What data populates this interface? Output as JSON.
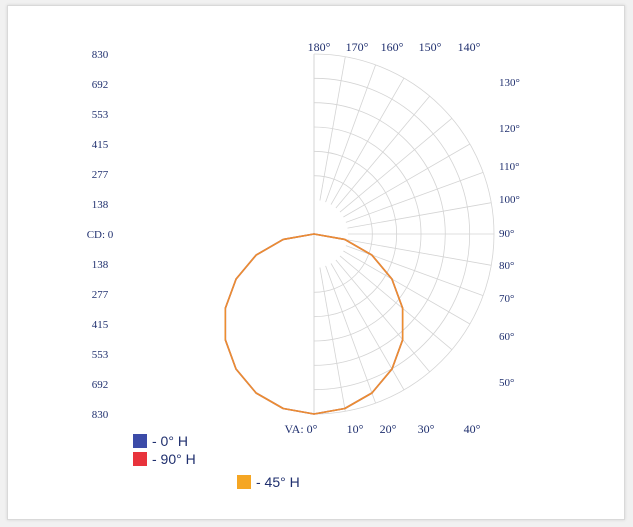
{
  "chart_data": {
    "type": "polar",
    "title": "",
    "vertical_axis_label": "CD: 0",
    "cd_ticks_top": [
      "830",
      "692",
      "553",
      "415",
      "277",
      "138"
    ],
    "cd_ticks_bottom": [
      "138",
      "277",
      "415",
      "553",
      "692",
      "830"
    ],
    "max_candela": 830,
    "angle_labels_top": [
      "180°",
      "170°",
      "160°",
      "150°",
      "140°"
    ],
    "angle_labels_right": [
      "130°",
      "120°",
      "110°",
      "100°",
      "90°",
      "80°",
      "70°",
      "60°",
      "50°"
    ],
    "angle_label_bottom_prefix": "VA: 0°",
    "angle_labels_bottom": [
      "10°",
      "20°",
      "30°",
      "40°"
    ],
    "grid": true,
    "legend_placement": "bottom-left",
    "series": [
      {
        "name": "- 0° H",
        "color": "#3c4ba8",
        "angles": [
          0,
          10,
          20,
          30,
          40,
          50,
          60,
          70,
          80,
          90
        ],
        "values": [
          830,
          817,
          780,
          719,
          636,
          534,
          415,
          284,
          144,
          0
        ]
      },
      {
        "name": "- 90° H",
        "color": "#e8333c",
        "angles": [
          0,
          10,
          20,
          30,
          40,
          50,
          60,
          70,
          80,
          90
        ],
        "values": [
          830,
          817,
          780,
          719,
          636,
          534,
          415,
          284,
          144,
          0
        ]
      },
      {
        "name": "- 45° H",
        "color": "#f5a623",
        "angles": [
          0,
          10,
          20,
          30,
          40,
          50,
          60,
          70,
          80,
          90
        ],
        "values": [
          830,
          817,
          780,
          719,
          636,
          534,
          415,
          284,
          144,
          0
        ]
      }
    ]
  },
  "colors": {
    "axis_text": "#1f2f6e",
    "grid": "#d4d4d4",
    "curve": "#c9743a"
  }
}
